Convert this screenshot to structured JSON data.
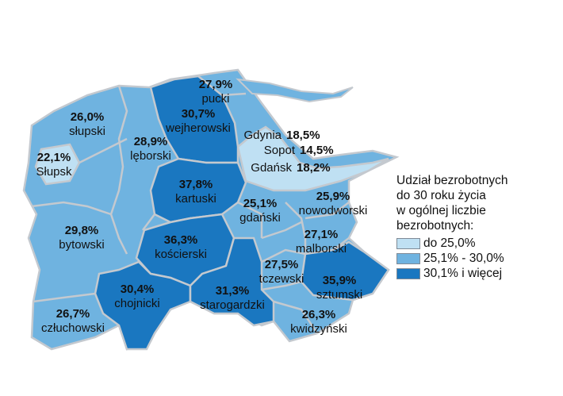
{
  "colors": {
    "low": "#bfe0f3",
    "mid": "#6fb3e0",
    "high": "#1a77c0",
    "border": "#c4c9cf"
  },
  "legend": {
    "title_lines": [
      "Udział bezrobotnych",
      "do 30 roku życia",
      "w ogólnej liczbie",
      "bezrobotnych:"
    ],
    "items": [
      {
        "label": "do 25,0%",
        "class": "low"
      },
      {
        "label": "25,1% - 30,0%",
        "class": "mid"
      },
      {
        "label": "30,1% i więcej",
        "class": "high"
      }
    ]
  },
  "regions": [
    {
      "name": "pucki",
      "value": "27,9%",
      "class": "mid"
    },
    {
      "name": "wejherowski",
      "value": "30,7%",
      "class": "high"
    },
    {
      "name": "słupski",
      "value": "26,0%",
      "class": "mid"
    },
    {
      "name": "lęborski",
      "value": "28,9%",
      "class": "mid"
    },
    {
      "name": "Słupsk",
      "value": "22,1%",
      "class": "low"
    },
    {
      "name": "kartuski",
      "value": "37,8%",
      "class": "high"
    },
    {
      "name": "gdański",
      "value": "25,1%",
      "class": "mid"
    },
    {
      "name": "nowodworski",
      "value": "25,9%",
      "class": "mid"
    },
    {
      "name": "bytowski",
      "value": "29,8%",
      "class": "mid"
    },
    {
      "name": "kościerski",
      "value": "36,3%",
      "class": "high"
    },
    {
      "name": "malborski",
      "value": "27,1%",
      "class": "mid"
    },
    {
      "name": "tczewski",
      "value": "27,5%",
      "class": "mid"
    },
    {
      "name": "sztumski",
      "value": "35,9%",
      "class": "high"
    },
    {
      "name": "chojnicki",
      "value": "30,4%",
      "class": "high"
    },
    {
      "name": "starogardzki",
      "value": "31,3%",
      "class": "high"
    },
    {
      "name": "człuchowski",
      "value": "26,7%",
      "class": "mid"
    },
    {
      "name": "kwidzyński",
      "value": "26,3%",
      "class": "mid"
    }
  ],
  "cities": [
    {
      "name": "Gdynia",
      "value": "18,5%"
    },
    {
      "name": "Sopot",
      "value": "14,5%"
    },
    {
      "name": "Gdańsk",
      "value": "18,2%"
    }
  ]
}
